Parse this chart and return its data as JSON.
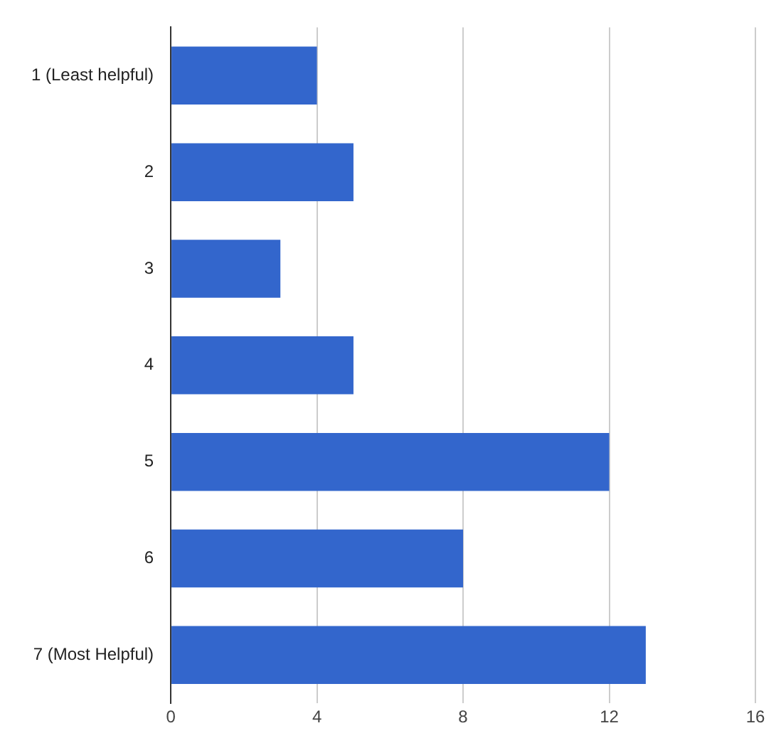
{
  "chart_data": {
    "type": "bar",
    "orientation": "horizontal",
    "categories": [
      "1 (Least helpful)",
      "2",
      "3",
      "4",
      "5",
      "6",
      "7 (Most Helpful)"
    ],
    "values": [
      4,
      5,
      3,
      5,
      12,
      8,
      13
    ],
    "color": "#3366cc",
    "xlim": [
      0,
      16
    ],
    "xticks": [
      0,
      4,
      8,
      12,
      16
    ],
    "grid": "x"
  }
}
